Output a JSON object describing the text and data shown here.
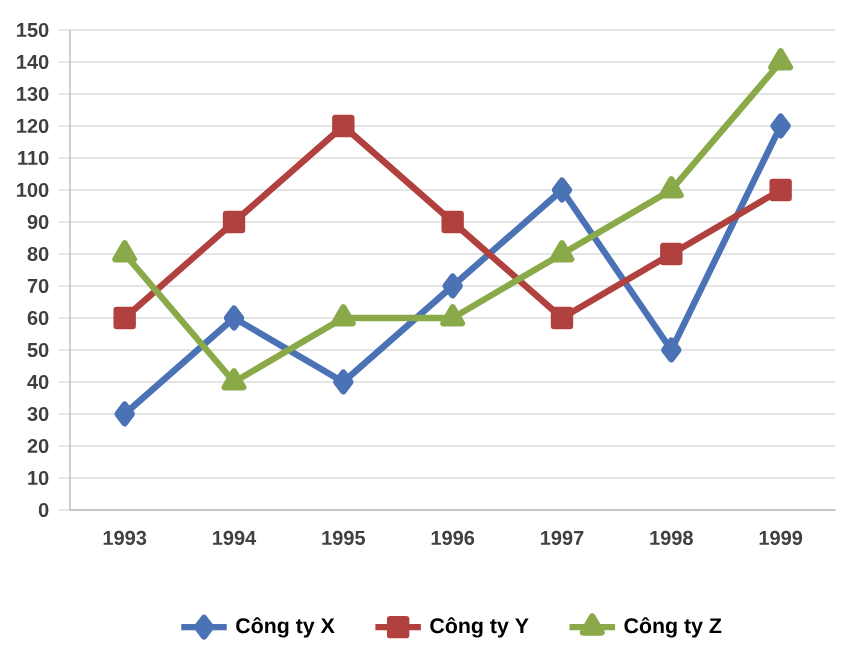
{
  "chart_data": {
    "type": "line",
    "categories": [
      "1993",
      "1994",
      "1995",
      "1996",
      "1997",
      "1998",
      "1999"
    ],
    "series": [
      {
        "name": "Công ty X",
        "color": "#4a72b5",
        "marker": "diamond",
        "values": [
          30,
          60,
          40,
          70,
          100,
          50,
          120
        ]
      },
      {
        "name": "Công ty Y",
        "color": "#b0413e",
        "marker": "square",
        "values": [
          60,
          90,
          120,
          90,
          60,
          80,
          100
        ]
      },
      {
        "name": "Công ty Z",
        "color": "#8aaa4a",
        "marker": "triangle",
        "values": [
          80,
          40,
          60,
          60,
          80,
          100,
          140
        ]
      }
    ],
    "ylim": [
      0,
      150
    ],
    "yticks": [
      0,
      10,
      20,
      30,
      40,
      50,
      60,
      70,
      80,
      90,
      100,
      110,
      120,
      130,
      140,
      150
    ],
    "grid": "y",
    "legend": "bottom",
    "line_style": "solid"
  }
}
